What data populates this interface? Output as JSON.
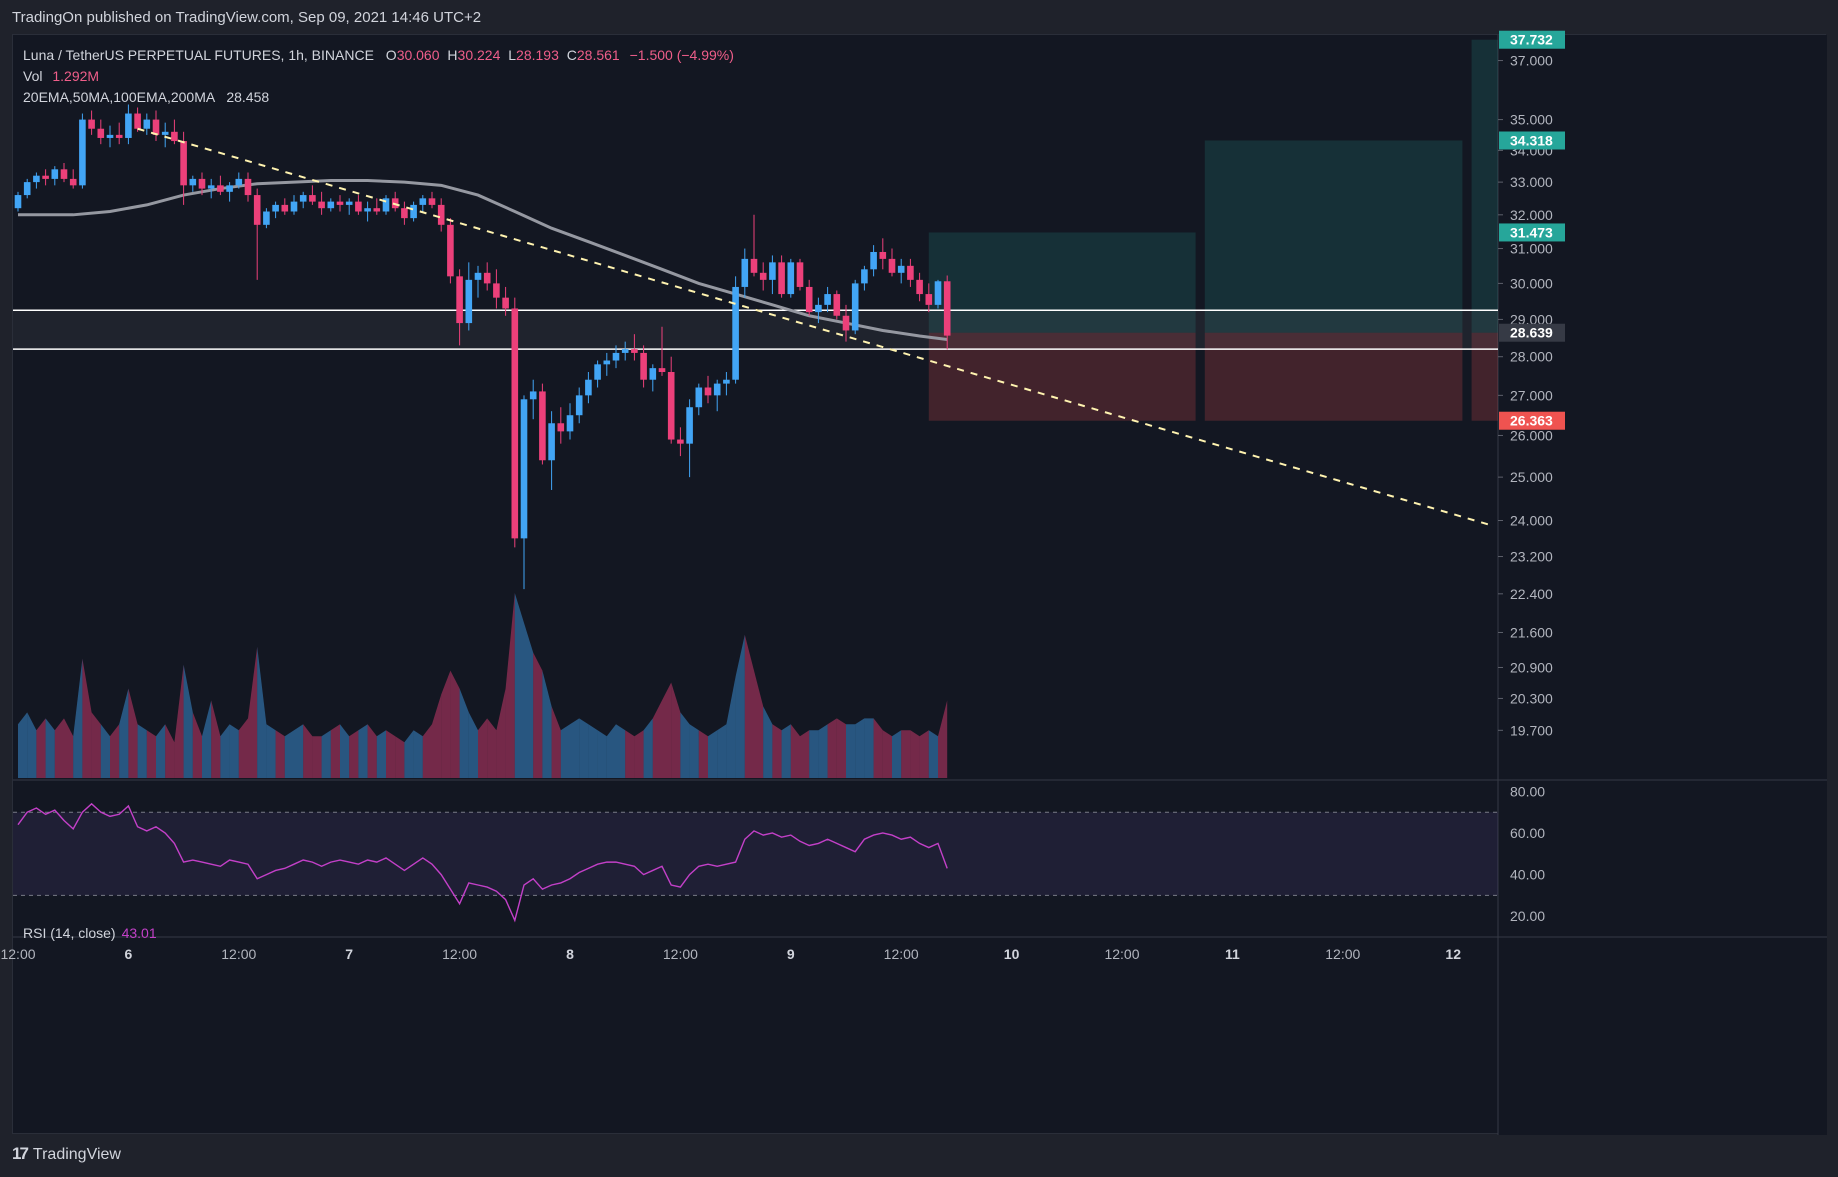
{
  "header": {
    "published_text": "TradingOn published on TradingView.com, Sep 09, 2021 14:46 UTC+2"
  },
  "legend": {
    "symbol": "Luna / TetherUS PERPETUAL FUTURES, 1h, BINANCE",
    "open_label": "O",
    "open": "30.060",
    "high_label": "H",
    "high": "30.224",
    "low_label": "L",
    "low": "28.193",
    "close_label": "C",
    "close": "28.561",
    "change": "−1.500 (−4.99%)",
    "vol_label": "Vol",
    "vol": "1.292M",
    "ma_label": "20EMA,50MA,100EMA,200MA",
    "ma_value": "28.458"
  },
  "rsi": {
    "label": "RSI (14, close)",
    "value": "43.01"
  },
  "footer": {
    "logo": "17",
    "brand": "TradingView"
  },
  "colors": {
    "bull": "#42a5f5",
    "bear": "#ec407a",
    "ma": "#9598a1",
    "trendline": "#fff3b0",
    "rsi": "#c340c8",
    "target": "#26a69a",
    "stop": "#ef5350",
    "bg": "#131722"
  },
  "chart_data": [
    {
      "type": "candlestick",
      "y_scale": "log",
      "ylim": [
        18.8,
        37.9
      ],
      "y_ticks": [
        "37.000",
        "35.000",
        "34.000",
        "33.000",
        "32.000",
        "31.000",
        "30.000",
        "29.000",
        "28.000",
        "27.000",
        "26.000",
        "25.000",
        "24.000",
        "23.200",
        "22.400",
        "21.600",
        "20.900",
        "20.300",
        "19.700"
      ],
      "x_ticks": [
        {
          "label": "12:00",
          "i": 0
        },
        {
          "label": "6",
          "i": 12
        },
        {
          "label": "12:00",
          "i": 24
        },
        {
          "label": "7",
          "i": 36
        },
        {
          "label": "12:00",
          "i": 48
        },
        {
          "label": "8",
          "i": 60
        },
        {
          "label": "12:00",
          "i": 72
        },
        {
          "label": "9",
          "i": 84
        },
        {
          "label": "12:00",
          "i": 96
        },
        {
          "label": "10",
          "i": 108
        },
        {
          "label": "12:00",
          "i": 120
        },
        {
          "label": "11",
          "i": 132
        },
        {
          "label": "12:00",
          "i": 144
        },
        {
          "label": "12",
          "i": 156
        }
      ],
      "price_labels": [
        {
          "value": "37.732",
          "color": "#26a69a"
        },
        {
          "value": "34.318",
          "color": "#26a69a"
        },
        {
          "value": "31.473",
          "color": "#26a69a"
        },
        {
          "value": "28.639",
          "color": "#363a45"
        },
        {
          "value": "26.363",
          "color": "#ef5350"
        }
      ],
      "candles": [
        [
          32.2,
          32.7,
          32.1,
          32.6
        ],
        [
          32.6,
          33.1,
          32.5,
          33.0
        ],
        [
          33.0,
          33.3,
          32.8,
          33.2
        ],
        [
          33.2,
          33.4,
          32.9,
          33.1
        ],
        [
          33.1,
          33.5,
          32.9,
          33.4
        ],
        [
          33.4,
          33.6,
          33.0,
          33.1
        ],
        [
          33.1,
          33.4,
          32.8,
          32.9
        ],
        [
          32.9,
          35.2,
          32.8,
          35.0
        ],
        [
          35.0,
          35.3,
          34.5,
          34.7
        ],
        [
          34.7,
          35.0,
          34.2,
          34.4
        ],
        [
          34.4,
          34.8,
          34.1,
          34.5
        ],
        [
          34.5,
          34.9,
          34.2,
          34.4
        ],
        [
          34.4,
          35.5,
          34.2,
          35.2
        ],
        [
          35.2,
          35.4,
          34.6,
          34.7
        ],
        [
          34.7,
          35.2,
          34.5,
          35.0
        ],
        [
          35.0,
          35.3,
          34.3,
          34.5
        ],
        [
          34.5,
          34.9,
          34.1,
          34.6
        ],
        [
          34.6,
          35.0,
          34.2,
          34.3
        ],
        [
          34.3,
          34.6,
          32.3,
          32.9
        ],
        [
          32.9,
          33.2,
          32.7,
          33.1
        ],
        [
          33.1,
          33.3,
          32.6,
          32.8
        ],
        [
          32.8,
          33.1,
          32.5,
          32.9
        ],
        [
          32.9,
          33.2,
          32.6,
          32.7
        ],
        [
          32.7,
          33.0,
          32.4,
          32.9
        ],
        [
          32.9,
          33.3,
          32.8,
          33.1
        ],
        [
          33.1,
          33.3,
          32.4,
          32.6
        ],
        [
          32.6,
          32.8,
          30.1,
          31.7
        ],
        [
          31.7,
          32.2,
          31.6,
          32.1
        ],
        [
          32.1,
          32.4,
          31.9,
          32.3
        ],
        [
          32.3,
          32.5,
          32.0,
          32.1
        ],
        [
          32.1,
          32.6,
          32.0,
          32.4
        ],
        [
          32.4,
          32.7,
          32.2,
          32.6
        ],
        [
          32.6,
          32.9,
          32.3,
          32.4
        ],
        [
          32.4,
          32.7,
          32.0,
          32.2
        ],
        [
          32.2,
          32.5,
          32.1,
          32.4
        ],
        [
          32.4,
          32.6,
          32.1,
          32.3
        ],
        [
          32.3,
          32.5,
          32.0,
          32.4
        ],
        [
          32.4,
          32.6,
          32.0,
          32.1
        ],
        [
          32.1,
          32.4,
          31.8,
          32.2
        ],
        [
          32.2,
          32.5,
          32.0,
          32.1
        ],
        [
          32.1,
          32.6,
          32.0,
          32.5
        ],
        [
          32.5,
          32.7,
          32.1,
          32.2
        ],
        [
          32.2,
          32.4,
          31.7,
          31.9
        ],
        [
          31.9,
          32.4,
          31.8,
          32.3
        ],
        [
          32.3,
          32.6,
          32.1,
          32.5
        ],
        [
          32.5,
          32.7,
          32.2,
          32.3
        ],
        [
          32.3,
          32.5,
          31.5,
          31.7
        ],
        [
          31.7,
          31.9,
          30.0,
          30.2
        ],
        [
          30.2,
          30.4,
          28.3,
          28.9
        ],
        [
          28.9,
          30.6,
          28.7,
          30.1
        ],
        [
          30.1,
          30.5,
          29.6,
          30.3
        ],
        [
          30.3,
          30.6,
          29.8,
          30.0
        ],
        [
          30.0,
          30.4,
          29.3,
          29.6
        ],
        [
          29.6,
          29.9,
          29.1,
          29.3
        ],
        [
          29.3,
          29.6,
          23.4,
          23.6
        ],
        [
          23.6,
          27.0,
          22.5,
          26.9
        ],
        [
          26.9,
          27.4,
          26.4,
          27.1
        ],
        [
          27.1,
          27.3,
          25.3,
          25.4
        ],
        [
          25.4,
          26.6,
          24.7,
          26.3
        ],
        [
          26.3,
          26.7,
          25.8,
          26.1
        ],
        [
          26.1,
          26.8,
          25.9,
          26.5
        ],
        [
          26.5,
          27.2,
          26.3,
          27.0
        ],
        [
          27.0,
          27.6,
          26.8,
          27.4
        ],
        [
          27.4,
          27.9,
          27.2,
          27.8
        ],
        [
          27.8,
          28.1,
          27.5,
          27.9
        ],
        [
          27.9,
          28.3,
          27.7,
          28.1
        ],
        [
          28.1,
          28.4,
          27.9,
          28.2
        ],
        [
          28.2,
          28.6,
          27.9,
          28.1
        ],
        [
          28.1,
          28.3,
          27.2,
          27.4
        ],
        [
          27.4,
          27.8,
          27.1,
          27.7
        ],
        [
          27.7,
          28.8,
          27.5,
          27.6
        ],
        [
          27.6,
          28.0,
          25.8,
          25.9
        ],
        [
          25.9,
          26.2,
          25.5,
          25.8
        ],
        [
          25.8,
          26.9,
          25.0,
          26.7
        ],
        [
          26.7,
          27.3,
          26.5,
          27.2
        ],
        [
          27.2,
          27.5,
          26.8,
          27.0
        ],
        [
          27.0,
          27.4,
          26.6,
          27.3
        ],
        [
          27.3,
          27.6,
          27.0,
          27.4
        ],
        [
          27.4,
          30.2,
          27.3,
          29.9
        ],
        [
          29.9,
          31.0,
          29.6,
          30.7
        ],
        [
          30.7,
          32.0,
          30.2,
          30.3
        ],
        [
          30.3,
          30.6,
          29.8,
          30.1
        ],
        [
          30.1,
          30.8,
          29.7,
          30.6
        ],
        [
          30.6,
          30.8,
          29.6,
          29.7
        ],
        [
          29.7,
          30.7,
          29.6,
          30.6
        ],
        [
          30.6,
          30.7,
          29.8,
          29.9
        ],
        [
          29.9,
          30.1,
          29.1,
          29.2
        ],
        [
          29.2,
          29.6,
          28.9,
          29.4
        ],
        [
          29.4,
          29.9,
          29.2,
          29.7
        ],
        [
          29.7,
          29.8,
          29.0,
          29.1
        ],
        [
          29.1,
          29.4,
          28.4,
          28.7
        ],
        [
          28.7,
          30.1,
          28.6,
          30.0
        ],
        [
          30.0,
          30.5,
          29.8,
          30.4
        ],
        [
          30.4,
          31.1,
          30.2,
          30.9
        ],
        [
          30.9,
          31.3,
          30.4,
          30.7
        ],
        [
          30.7,
          31.0,
          30.2,
          30.3
        ],
        [
          30.3,
          30.7,
          30.0,
          30.5
        ],
        [
          30.5,
          30.7,
          29.9,
          30.1
        ],
        [
          30.1,
          30.3,
          29.5,
          29.7
        ],
        [
          29.7,
          30.0,
          29.2,
          29.4
        ],
        [
          29.4,
          30.1,
          29.3,
          30.06
        ],
        [
          30.06,
          30.224,
          28.193,
          28.561
        ]
      ],
      "moving_average": [
        [
          0,
          32.0
        ],
        [
          6,
          32.0
        ],
        [
          10,
          32.1
        ],
        [
          14,
          32.3
        ],
        [
          18,
          32.6
        ],
        [
          22,
          32.8
        ],
        [
          26,
          32.95
        ],
        [
          30,
          33.0
        ],
        [
          34,
          33.05
        ],
        [
          38,
          33.05
        ],
        [
          42,
          33.0
        ],
        [
          46,
          32.9
        ],
        [
          50,
          32.6
        ],
        [
          54,
          32.1
        ],
        [
          58,
          31.6
        ],
        [
          62,
          31.2
        ],
        [
          66,
          30.8
        ],
        [
          70,
          30.4
        ],
        [
          74,
          30.0
        ],
        [
          78,
          29.7
        ],
        [
          82,
          29.4
        ],
        [
          86,
          29.1
        ],
        [
          90,
          28.9
        ],
        [
          94,
          28.7
        ],
        [
          98,
          28.55
        ],
        [
          101,
          28.458
        ]
      ],
      "trendline": {
        "from": [
          13,
          34.7
        ],
        "to": [
          160,
          23.9
        ],
        "style": "dashed"
      },
      "support_zone": {
        "upper": 29.25,
        "lower": 28.2
      },
      "positions": [
        {
          "entry": 28.639,
          "target": 31.473,
          "stop": 26.363,
          "from": 99,
          "to": 128
        },
        {
          "entry": 28.639,
          "target": 34.318,
          "stop": 26.363,
          "from": 129,
          "to": 157
        },
        {
          "entry": 28.639,
          "target": 37.732,
          "stop": 26.363,
          "from": 158,
          "to": 163
        }
      ]
    },
    {
      "type": "area",
      "name": "Vol",
      "values": [
        0.9,
        1.1,
        0.8,
        1.0,
        0.8,
        1.0,
        0.7,
        2.0,
        1.1,
        0.9,
        0.7,
        0.9,
        1.5,
        0.9,
        0.8,
        0.7,
        0.9,
        0.6,
        1.9,
        1.1,
        0.7,
        1.3,
        0.7,
        0.9,
        0.8,
        1.0,
        2.2,
        0.9,
        0.8,
        0.7,
        0.8,
        0.9,
        0.7,
        0.7,
        0.8,
        0.9,
        0.7,
        0.8,
        0.9,
        0.7,
        0.8,
        0.7,
        0.6,
        0.8,
        0.7,
        0.9,
        1.4,
        1.8,
        1.5,
        1.1,
        0.8,
        1.0,
        0.8,
        1.5,
        3.1,
        2.6,
        2.1,
        1.8,
        1.2,
        0.8,
        0.9,
        1.0,
        0.9,
        0.8,
        0.7,
        0.9,
        0.8,
        0.7,
        0.8,
        1.0,
        1.3,
        1.6,
        1.1,
        0.9,
        0.8,
        0.7,
        0.8,
        0.9,
        1.7,
        2.4,
        1.8,
        1.2,
        0.9,
        0.8,
        0.9,
        0.7,
        0.8,
        0.8,
        0.9,
        1.0,
        0.9,
        0.9,
        1.0,
        1.0,
        0.8,
        0.7,
        0.8,
        0.8,
        0.7,
        0.8,
        0.7,
        1.3
      ]
    },
    {
      "type": "line",
      "name": "RSI",
      "ylim": [
        10,
        85
      ],
      "y_ticks": [
        80,
        60,
        40,
        20
      ],
      "bands": [
        70,
        30
      ],
      "values": [
        64,
        70,
        72,
        69,
        71,
        66,
        62,
        70,
        74,
        70,
        68,
        69,
        73,
        63,
        61,
        63,
        60,
        55,
        46,
        47,
        46,
        45,
        44,
        47,
        46,
        45,
        38,
        40,
        42,
        43,
        45,
        47,
        46,
        44,
        46,
        47,
        46,
        45,
        47,
        46,
        48,
        45,
        42,
        45,
        48,
        45,
        40,
        33,
        26,
        36,
        35,
        34,
        32,
        28,
        18,
        35,
        38,
        33,
        35,
        36,
        38,
        41,
        43,
        45,
        46,
        46,
        45,
        44,
        40,
        42,
        44,
        35,
        34,
        40,
        44,
        45,
        44,
        45,
        46,
        57,
        61,
        59,
        60,
        58,
        59,
        56,
        54,
        55,
        57,
        55,
        53,
        51,
        57,
        59,
        60,
        59,
        57,
        58,
        55,
        53,
        55,
        43
      ]
    }
  ]
}
